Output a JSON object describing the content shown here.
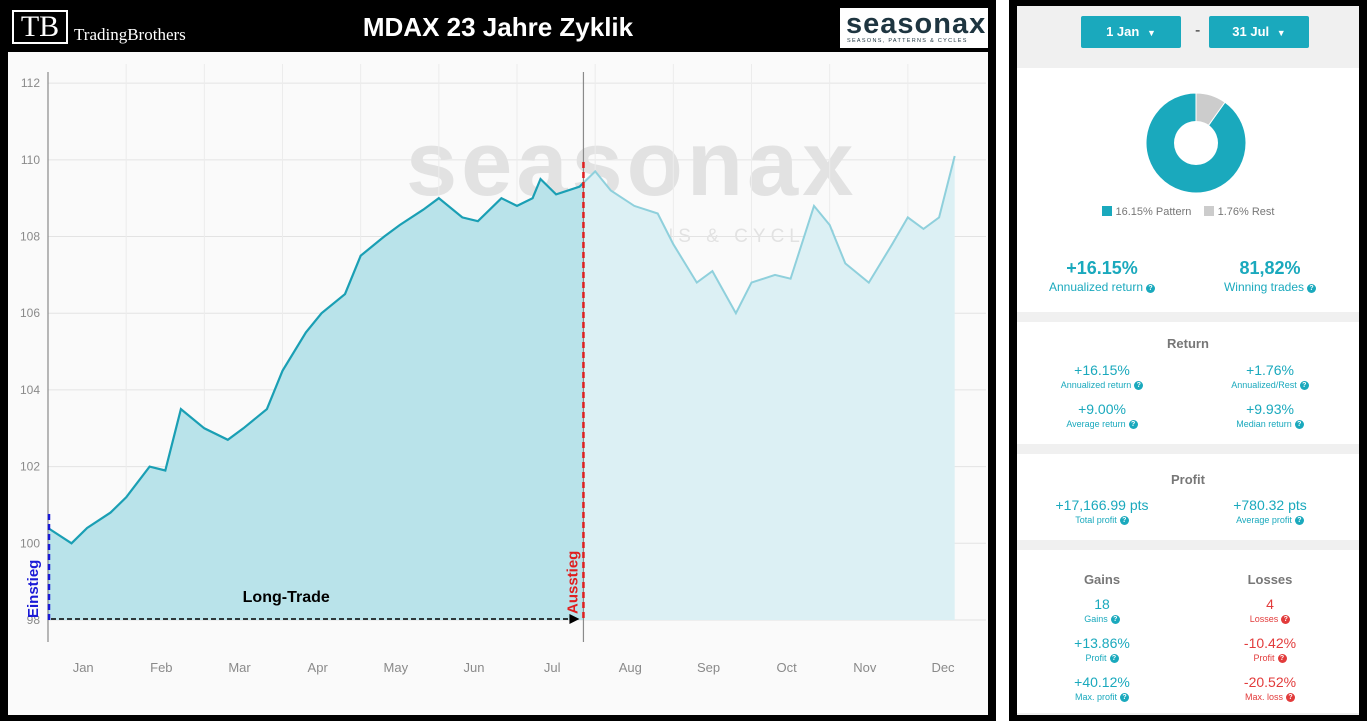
{
  "header": {
    "tb_mark": "TB",
    "tb_name": "TradingBrothers",
    "title": "MDAX 23 Jahre Zyklik",
    "logo_main": "seasonax",
    "logo_sub": "SEASONS, PATTERNS & CYCLES"
  },
  "watermark": {
    "main": "seasonax",
    "sub": "SEASONS, PATTERNS & CYCLES"
  },
  "annotations": {
    "entry": "Einstieg",
    "exit": "Ausstieg",
    "trade": "Long-Trade"
  },
  "colors": {
    "line": "#1a9fb4",
    "fill": "#b9e3ea",
    "fill_light": "#dcf0f4",
    "entry": "#1a1ad6",
    "exit": "#e01f1f",
    "accent": "#1aa9bd",
    "rest": "#cccccc",
    "negative": "#e23b3b"
  },
  "chart_data": {
    "type": "area",
    "ylim": [
      98,
      112.5
    ],
    "yticks": [
      98,
      100,
      102,
      104,
      106,
      108,
      110,
      112
    ],
    "months": [
      "Jan",
      "Feb",
      "Mar",
      "Apr",
      "May",
      "Jun",
      "Jul",
      "Aug",
      "Sep",
      "Oct",
      "Nov",
      "Dec"
    ],
    "x": [
      0,
      0.3,
      0.5,
      0.8,
      1.0,
      1.3,
      1.5,
      1.7,
      2.0,
      2.3,
      2.5,
      2.8,
      3.0,
      3.3,
      3.5,
      3.8,
      4.0,
      4.3,
      4.5,
      4.8,
      5.0,
      5.3,
      5.5,
      5.8,
      6.0,
      6.2,
      6.3,
      6.5,
      6.8,
      7.0,
      7.2,
      7.5,
      7.8,
      8.0,
      8.3,
      8.5,
      8.8,
      9.0,
      9.3,
      9.5,
      9.8,
      10.0,
      10.2,
      10.5,
      10.8,
      11.0,
      11.2,
      11.4,
      11.6
    ],
    "y": [
      100.4,
      100.0,
      100.4,
      100.8,
      101.2,
      102.0,
      101.9,
      103.5,
      103.0,
      102.7,
      103.0,
      103.5,
      104.5,
      105.5,
      106.0,
      106.5,
      107.5,
      108.0,
      108.3,
      108.7,
      109.0,
      108.5,
      108.4,
      109.0,
      108.8,
      109.0,
      109.5,
      109.1,
      109.3,
      109.7,
      109.2,
      108.8,
      108.6,
      107.8,
      106.8,
      107.1,
      106.0,
      106.8,
      107.0,
      106.9,
      108.8,
      108.3,
      107.3,
      106.8,
      107.8,
      108.5,
      108.2,
      108.5,
      110.1
    ],
    "entry_x": 0,
    "exit_x": 6.85,
    "selection_end_x": 6.85
  },
  "panel": {
    "date_from": "1 Jan",
    "date_to": "31 Jul",
    "date_sep": "-",
    "pie": {
      "pattern_pct": 16.15,
      "rest_pct": 1.76
    },
    "legend_pattern": "16.15% Pattern",
    "legend_rest": "1.76% Rest",
    "kpi_return": "+16.15%",
    "kpi_return_label": "Annualized return",
    "kpi_winning": "81,82%",
    "kpi_winning_label": "Winning trades",
    "return_title": "Return",
    "r1v": "+16.15%",
    "r1l": "Annualized return",
    "r2v": "+1.76%",
    "r2l": "Annualized/Rest",
    "r3v": "+9.00%",
    "r3l": "Average return",
    "r4v": "+9.93%",
    "r4l": "Median return",
    "profit_title": "Profit",
    "p1v": "+17,166.99 pts",
    "p1l": "Total profit",
    "p2v": "+780.32 pts",
    "p2l": "Average profit",
    "gains_title": "Gains",
    "losses_title": "Losses",
    "g1v": "18",
    "g1l": "Gains",
    "g2v": "+13.86%",
    "g2l": "Profit",
    "g3v": "+40.12%",
    "g3l": "Max. profit",
    "l1v": "4",
    "l1l": "Losses",
    "l2v": "-10.42%",
    "l2l": "Profit",
    "l3v": "-20.52%",
    "l3l": "Max. loss",
    "q": "?"
  }
}
